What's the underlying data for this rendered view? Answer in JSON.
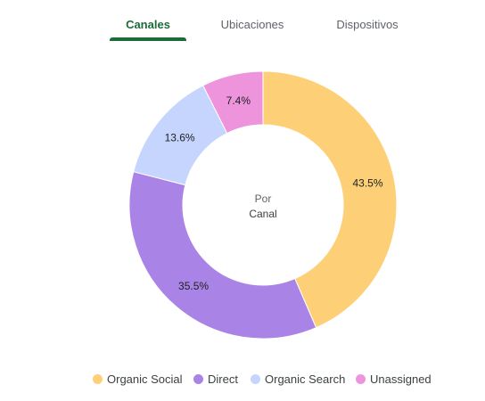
{
  "tabs": [
    {
      "label": "Canales",
      "active": true
    },
    {
      "label": "Ubicaciones",
      "active": false
    },
    {
      "label": "Dispositivos",
      "active": false
    }
  ],
  "center": {
    "line1": "Por",
    "line2": "Canal"
  },
  "colors": {
    "active_tab": "#1e6b3a",
    "organic_social": "#fdd078",
    "direct": "#a983e6",
    "organic_search": "#c5d5fd",
    "unassigned": "#ee94dd"
  },
  "chart_data": {
    "type": "pie",
    "style": "donut",
    "categories": [
      "Organic Social",
      "Direct",
      "Organic Search",
      "Unassigned"
    ],
    "values": [
      43.5,
      35.5,
      13.6,
      7.4
    ],
    "value_labels": [
      "43.5%",
      "35.5%",
      "13.6%",
      "7.4%"
    ],
    "colors": [
      "#fdd078",
      "#a983e6",
      "#c5d5fd",
      "#ee94dd"
    ],
    "legend_position": "bottom",
    "start_angle": "top",
    "direction": "clockwise"
  }
}
